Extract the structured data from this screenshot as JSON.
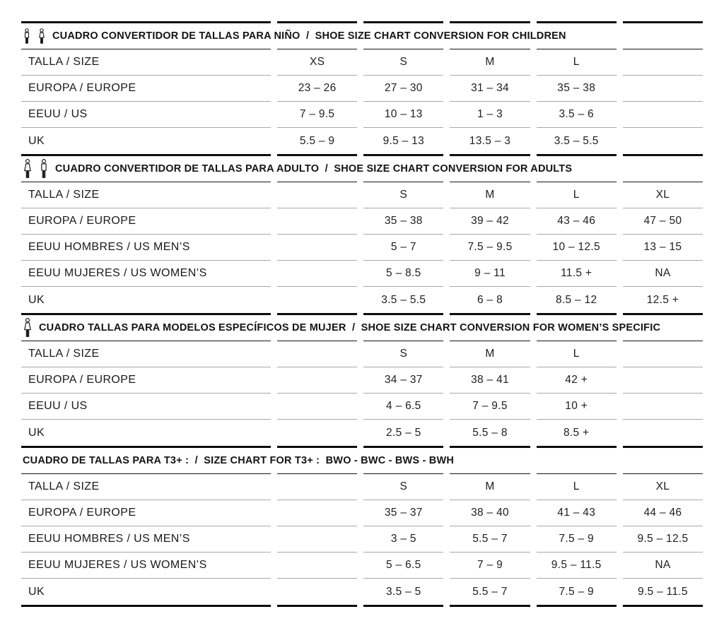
{
  "palette": {
    "ink": "#141414",
    "thick_rule": "#0d0d0d",
    "row_rule_gray": "#a8a8a8"
  },
  "sections": [
    {
      "id": "children",
      "icons": [
        "child-boy-icon",
        "child-girl-icon"
      ],
      "title": "CUADRO CONVERTIDOR DE TALLAS PARA NIÑO  /  SHOE SIZE CHART CONVERSION FOR CHILDREN",
      "rows": [
        {
          "label": "TALLA / SIZE",
          "values": [
            "XS",
            "S",
            "M",
            "L",
            ""
          ]
        },
        {
          "label": "EUROPA / EUROPE",
          "values": [
            "23 – 26",
            "27 – 30",
            "31 – 34",
            "35 – 38",
            ""
          ]
        },
        {
          "label": "EEUU / US",
          "values": [
            "7 – 9.5",
            "10 – 13",
            "1 – 3",
            "3.5 – 6",
            ""
          ]
        },
        {
          "label": "UK",
          "values": [
            "5.5 – 9",
            "9.5 – 13",
            "13.5 – 3",
            "3.5 – 5.5",
            ""
          ]
        }
      ]
    },
    {
      "id": "adults",
      "icons": [
        "woman-icon",
        "man-icon"
      ],
      "title": "CUADRO CONVERTIDOR DE TALLAS PARA ADULTO  /  SHOE SIZE CHART CONVERSION FOR ADULTS",
      "rows": [
        {
          "label": "TALLA / SIZE",
          "values": [
            "",
            "S",
            "M",
            "L",
            "XL"
          ]
        },
        {
          "label": "EUROPA / EUROPE",
          "values": [
            "",
            "35 – 38",
            "39 – 42",
            "43 – 46",
            "47 – 50"
          ]
        },
        {
          "label": "EEUU HOMBRES / US MEN’S",
          "values": [
            "",
            "5 – 7",
            "7.5 – 9.5",
            "10 – 12.5",
            "13 – 15"
          ]
        },
        {
          "label": "EEUU MUJERES / US WOMEN’S",
          "values": [
            "",
            "5 – 8.5",
            "9 – 11",
            "11.5 +",
            "NA"
          ]
        },
        {
          "label": "UK",
          "values": [
            "",
            "3.5 – 5.5",
            "6 – 8",
            "8.5 – 12",
            "12.5 +"
          ]
        }
      ]
    },
    {
      "id": "womens-specific",
      "icons": [
        "woman-icon"
      ],
      "title": "CUADRO TALLAS PARA MODELOS ESPECÍFICOS DE MUJER  /  SHOE SIZE CHART CONVERSION FOR WOMEN’S SPECIFIC",
      "rows": [
        {
          "label": "TALLA / SIZE",
          "values": [
            "",
            "S",
            "M",
            "L",
            ""
          ]
        },
        {
          "label": "EUROPA / EUROPE",
          "values": [
            "",
            "34 – 37",
            "38 – 41",
            "42 +",
            ""
          ]
        },
        {
          "label": "EEUU / US",
          "values": [
            "",
            "4 – 6.5",
            "7 – 9.5",
            "10 +",
            ""
          ]
        },
        {
          "label": "UK",
          "values": [
            "",
            "2.5 – 5",
            "5.5 – 8",
            "8.5 +",
            ""
          ]
        }
      ]
    },
    {
      "id": "t3plus",
      "icons": [],
      "title": "CUADRO DE TALLAS PARA T3+ :  /  SIZE CHART FOR T3+ :  BWO - BWC - BWS - BWH",
      "rows": [
        {
          "label": "TALLA / SIZE",
          "values": [
            "",
            "S",
            "M",
            "L",
            "XL"
          ]
        },
        {
          "label": "EUROPA / EUROPE",
          "values": [
            "",
            "35 – 37",
            "38 – 40",
            "41 – 43",
            "44 – 46"
          ]
        },
        {
          "label": "EEUU HOMBRES / US MEN’S",
          "values": [
            "",
            "3 – 5",
            "5.5 – 7",
            "7.5 – 9",
            "9.5 – 12.5"
          ]
        },
        {
          "label": "EEUU MUJERES / US WOMEN’S",
          "values": [
            "",
            "5 – 6.5",
            "7 – 9",
            "9.5 – 11.5",
            "NA"
          ]
        },
        {
          "label": "UK",
          "values": [
            "",
            "3.5 – 5",
            "5.5 – 7",
            "7.5 – 9",
            "9.5 – 11.5"
          ]
        }
      ]
    }
  ]
}
